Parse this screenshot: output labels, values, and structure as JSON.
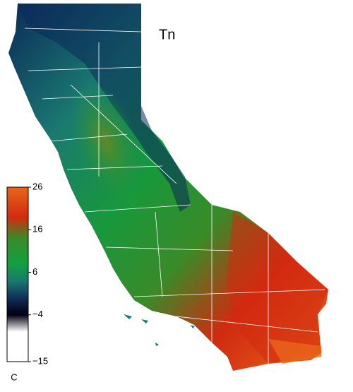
{
  "map": {
    "title": "Tn",
    "colorbar": {
      "label": "C",
      "lim": [
        -15,
        26
      ],
      "ticks": [
        26,
        16,
        6,
        {
          "value": -4,
          "label": "−4"
        },
        {
          "value": -15,
          "label": "−15"
        }
      ],
      "colormap": [
        {
          "value": 26,
          "color": "#e8661a"
        },
        {
          "value": 19,
          "color": "#d42a10"
        },
        {
          "value": 14,
          "color": "#3a8a28"
        },
        {
          "value": 8,
          "color": "#12a040"
        },
        {
          "value": 4,
          "color": "#1a7a70"
        },
        {
          "value": 0,
          "color": "#10305a"
        },
        {
          "value": -4,
          "color": "#000010"
        },
        {
          "value": -8,
          "color": "#ffffff"
        },
        {
          "value": -15,
          "color": "#ffffff"
        }
      ]
    }
  }
}
